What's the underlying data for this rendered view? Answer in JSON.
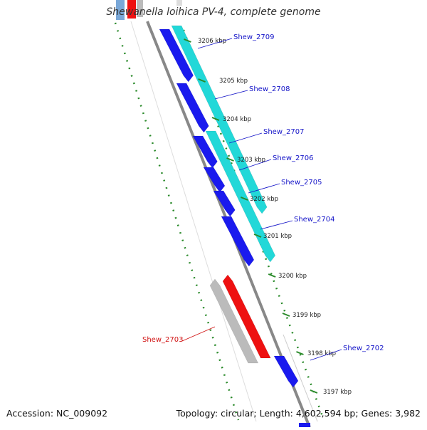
{
  "title": "Shewanella loihica PV-4, complete genome",
  "footer": {
    "accession": "Accession: NC_009092",
    "stats": "Topology: circular; Length: 4,602,594 bp; Genes: 3,982"
  },
  "colors": {
    "forward_gene": "#1a1aee",
    "forward_cds": "#22d8d8",
    "reverse_gene": "#ee1111",
    "reverse_cds": "#bbbbbb",
    "ruler": "#2a8a2a",
    "backbone": "#888888",
    "forward_label": "#1414c8",
    "reverse_label": "#d01010"
  },
  "ticks": [
    {
      "label": "3206 kbp"
    },
    {
      "label": "3205 kbp"
    },
    {
      "label": "3204 kbp"
    },
    {
      "label": "3203 kbp"
    },
    {
      "label": "3202 kbp"
    },
    {
      "label": "3201 kbp"
    },
    {
      "label": "3200 kbp"
    },
    {
      "label": "3199 kbp"
    },
    {
      "label": "3198 kbp"
    },
    {
      "label": "3197 kbp"
    }
  ],
  "genes": [
    {
      "name": "Shew_2709",
      "strand": "forward"
    },
    {
      "name": "Shew_2708",
      "strand": "forward"
    },
    {
      "name": "Shew_2707",
      "strand": "forward"
    },
    {
      "name": "Shew_2706",
      "strand": "forward"
    },
    {
      "name": "Shew_2705",
      "strand": "forward"
    },
    {
      "name": "Shew_2704",
      "strand": "forward"
    },
    {
      "name": "Shew_2703",
      "strand": "reverse"
    },
    {
      "name": "Shew_2702",
      "strand": "forward"
    }
  ]
}
